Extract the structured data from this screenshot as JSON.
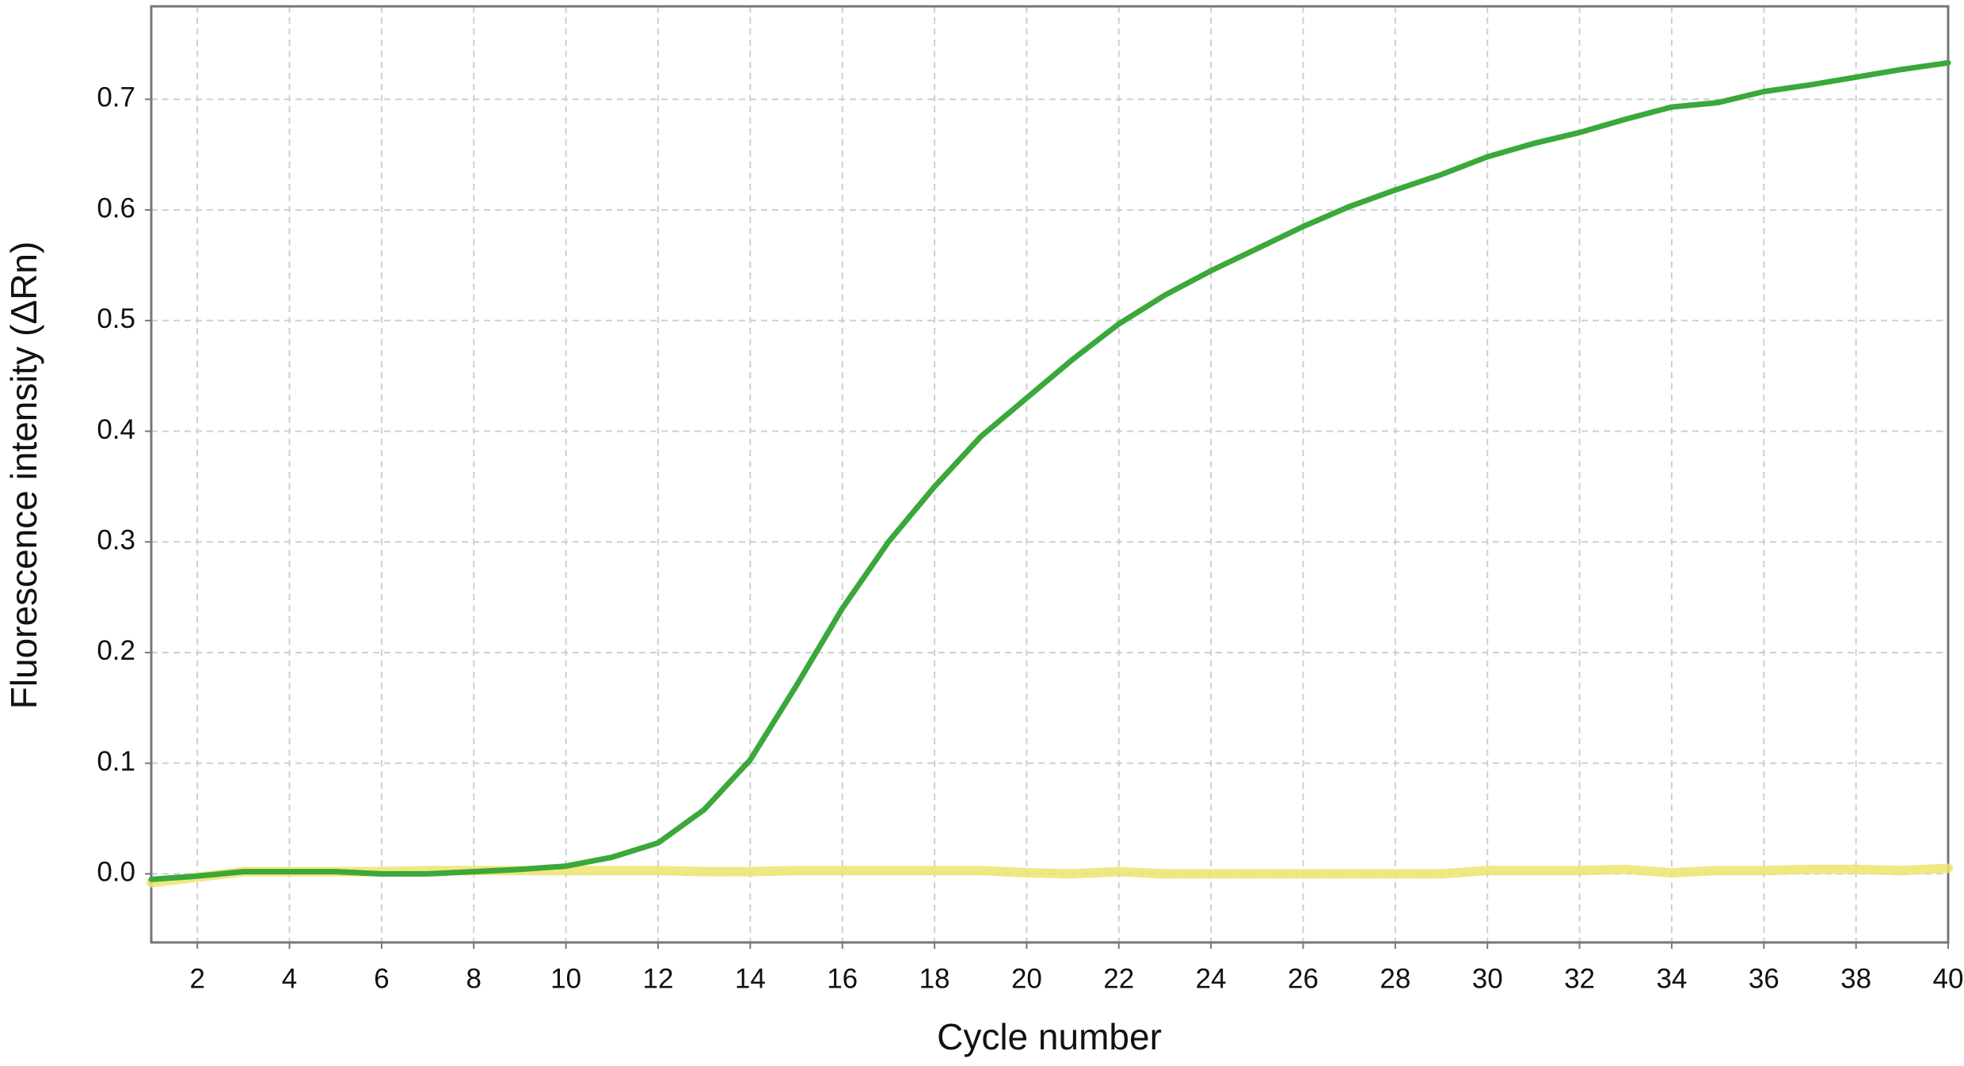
{
  "chart_data": {
    "type": "line",
    "xlabel": "Cycle number",
    "ylabel": "Fluorescence intensity (ΔRn)",
    "x": [
      1,
      2,
      3,
      4,
      5,
      6,
      7,
      8,
      9,
      10,
      11,
      12,
      13,
      14,
      15,
      16,
      17,
      18,
      19,
      20,
      21,
      22,
      23,
      24,
      25,
      26,
      27,
      28,
      29,
      30,
      31,
      32,
      33,
      34,
      35,
      36,
      37,
      38,
      39,
      40
    ],
    "series": [
      {
        "color": "#ede46c",
        "values": [
          -0.008,
          -0.003,
          0.002,
          0.002,
          0.002,
          0.002,
          0.003,
          0.003,
          0.003,
          0.003,
          0.003,
          0.003,
          0.002,
          0.002,
          0.003,
          0.003,
          0.003,
          0.003,
          0.003,
          0.001,
          0.0,
          0.002,
          0.0,
          0.0,
          0.0,
          0.0,
          0.0,
          0.0,
          0.0,
          0.003,
          0.003,
          0.003,
          0.004,
          0.001,
          0.003,
          0.003,
          0.004,
          0.004,
          0.003,
          0.005
        ]
      },
      {
        "color": "#3aa83a",
        "values": [
          -0.005,
          -0.002,
          0.002,
          0.002,
          0.002,
          0.0,
          0.0,
          0.002,
          0.004,
          0.007,
          0.015,
          0.028,
          0.058,
          0.103,
          0.17,
          0.24,
          0.3,
          0.35,
          0.395,
          0.43,
          0.465,
          0.497,
          0.523,
          0.545,
          0.565,
          0.585,
          0.603,
          0.618,
          0.632,
          0.648,
          0.66,
          0.67,
          0.682,
          0.693,
          0.697,
          0.707,
          0.713,
          0.72,
          0.727,
          0.733
        ]
      }
    ],
    "xlim": [
      1,
      40
    ],
    "xticks": [
      2,
      4,
      6,
      8,
      10,
      12,
      14,
      16,
      18,
      20,
      22,
      24,
      26,
      28,
      30,
      32,
      34,
      36,
      38,
      40
    ],
    "ylim": [
      -0.062,
      0.784
    ],
    "yticks": [
      {
        "value": 0,
        "label": "0.0"
      },
      0.1,
      0.2,
      0.3,
      0.4,
      0.5,
      0.6,
      0.7
    ],
    "grid": true
  }
}
